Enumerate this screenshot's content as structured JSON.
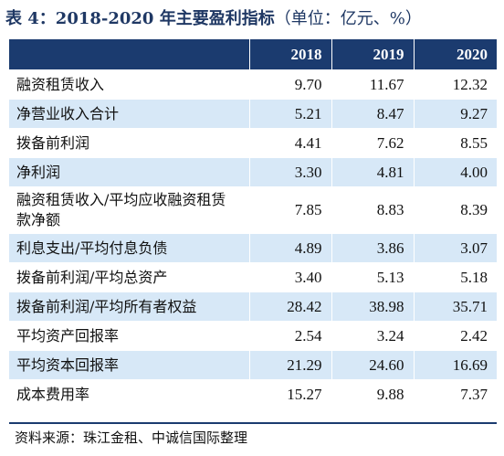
{
  "title": {
    "main": "表 4：2018-2020 年主要盈利指标",
    "unit": "（单位：亿元、%）"
  },
  "table": {
    "headers": [
      "",
      "2018",
      "2019",
      "2020"
    ],
    "rows": [
      {
        "label": "融资租赁收入",
        "values": [
          "9.70",
          "11.67",
          "12.32"
        ]
      },
      {
        "label": "净营业收入合计",
        "values": [
          "5.21",
          "8.47",
          "9.27"
        ]
      },
      {
        "label": "拨备前利润",
        "values": [
          "4.41",
          "7.62",
          "8.55"
        ]
      },
      {
        "label": "净利润",
        "values": [
          "3.30",
          "4.81",
          "4.00"
        ]
      },
      {
        "label": "融资租赁收入/平均应收融资租赁款净额",
        "values": [
          "7.85",
          "8.83",
          "8.39"
        ]
      },
      {
        "label": "利息支出/平均付息负债",
        "values": [
          "4.89",
          "3.86",
          "3.07"
        ]
      },
      {
        "label": "拨备前利润/平均总资产",
        "values": [
          "3.40",
          "5.13",
          "5.18"
        ]
      },
      {
        "label": "拨备前利润/平均所有者权益",
        "values": [
          "28.42",
          "38.98",
          "35.71"
        ]
      },
      {
        "label": "平均资产回报率",
        "values": [
          "2.54",
          "3.24",
          "2.42"
        ]
      },
      {
        "label": "平均资本回报率",
        "values": [
          "21.29",
          "24.60",
          "16.69"
        ]
      },
      {
        "label": "成本费用率",
        "values": [
          "15.27",
          "9.88",
          "7.37"
        ]
      }
    ]
  },
  "source": "资料来源：珠江金租、中诚信国际整理",
  "colors": {
    "header_bg": "#1b3b6f",
    "alt_row_bg": "#d7e8f7",
    "title_color": "#1f3864"
  }
}
